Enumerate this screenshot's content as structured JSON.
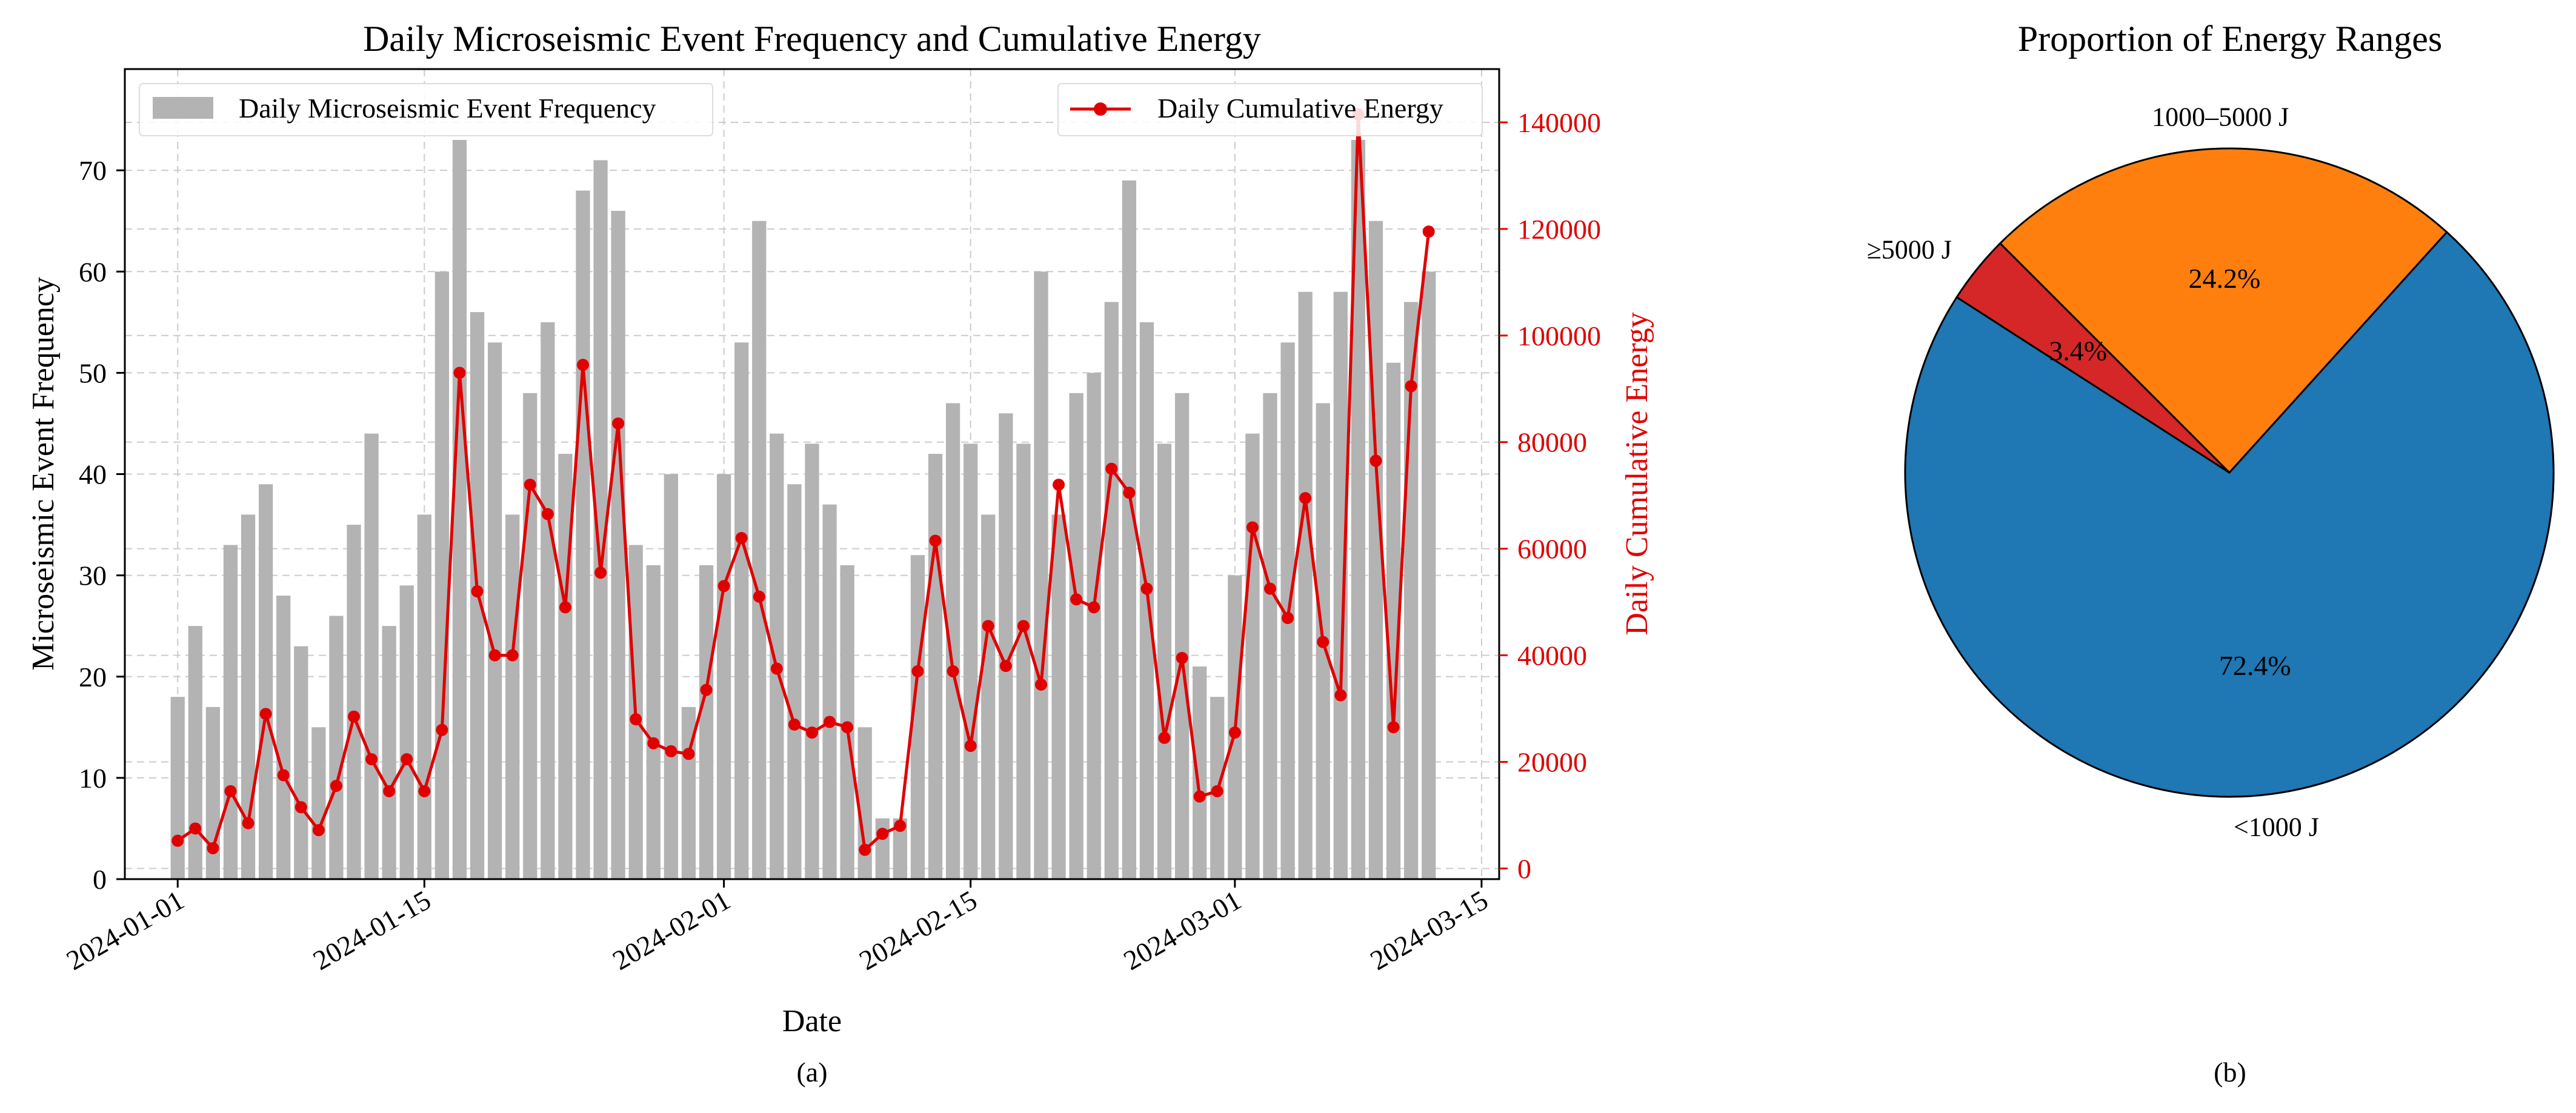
{
  "chart_data": [
    {
      "type": "bar+line",
      "title": "Daily Microseismic Event Frequency and Cumulative Energy",
      "xlabel": "Date",
      "ylabel": "Microseismic Event Frequency",
      "y2label": "Daily Cumulative Energy",
      "caption": "(a)",
      "start_date": "2024-01-01",
      "xlim": [
        "2023-12-29",
        "2024-03-16"
      ],
      "ylim": [
        0,
        80
      ],
      "y2lim": [
        -2000,
        150000
      ],
      "xticks": [
        "2024-01-01",
        "2024-01-15",
        "2024-02-01",
        "2024-02-15",
        "2024-03-01",
        "2024-03-15"
      ],
      "yticks": [
        "0",
        "10",
        "20",
        "30",
        "40",
        "50",
        "60",
        "70"
      ],
      "y2ticks": [
        "0",
        "20000",
        "40000",
        "60000",
        "80000",
        "100000",
        "120000",
        "140000"
      ],
      "grid": true,
      "legend_left": "Daily Microseismic Event Frequency",
      "legend_right": "Daily Cumulative Energy",
      "legend_left_placement": "upper-left",
      "legend_right_placement": "upper-right",
      "series": [
        {
          "name": "Daily Microseismic Event Frequency",
          "kind": "bar",
          "axis": "left",
          "color": "#b3b3b3",
          "values": [
            18,
            25,
            17,
            33,
            36,
            39,
            28,
            23,
            15,
            26,
            35,
            44,
            25,
            29,
            36,
            60,
            73,
            56,
            53,
            36,
            48,
            55,
            42,
            68,
            71,
            66,
            33,
            31,
            40,
            17,
            31,
            40,
            53,
            65,
            44,
            39,
            43,
            37,
            31,
            15,
            6,
            6,
            32,
            42,
            47,
            43,
            36,
            46,
            43,
            60,
            36,
            48,
            50,
            57,
            69,
            55,
            43,
            48,
            21,
            18,
            30,
            44,
            48,
            53,
            58,
            47,
            58,
            73,
            65,
            51,
            57,
            60
          ]
        },
        {
          "name": "Daily Cumulative Energy",
          "kind": "line",
          "axis": "right",
          "color": "#e00000",
          "values": [
            5200,
            7500,
            3800,
            14500,
            8500,
            29000,
            17500,
            11500,
            7200,
            15500,
            28500,
            20500,
            14500,
            20500,
            14500,
            26000,
            93000,
            52000,
            40000,
            40000,
            72000,
            66500,
            49000,
            94500,
            55500,
            83500,
            28000,
            23500,
            22000,
            21500,
            33500,
            53000,
            62000,
            51000,
            37500,
            27000,
            25500,
            27500,
            26500,
            3500,
            6500,
            8000,
            37000,
            61500,
            37000,
            23000,
            45500,
            38000,
            45500,
            34500,
            72000,
            50500,
            49000,
            75000,
            70500,
            52500,
            24500,
            39500,
            13500,
            14500,
            25500,
            64000,
            52500,
            47000,
            69500,
            42500,
            32500,
            141500,
            76500,
            26500,
            90500,
            119500
          ]
        }
      ]
    },
    {
      "type": "pie",
      "title": "Proportion of Energy Ranges",
      "caption": "(b)",
      "slices": [
        {
          "label": "<1000 J",
          "value": 72.4,
          "pct_label": "72.4%",
          "color": "#1f77b4"
        },
        {
          "label": "1000–5000 J",
          "value": 24.2,
          "pct_label": "24.2%",
          "color": "#ff7f0e"
        },
        {
          "label": "≥5000 J",
          "value": 3.4,
          "pct_label": "3.4%",
          "color": "#d62728"
        }
      ]
    }
  ]
}
